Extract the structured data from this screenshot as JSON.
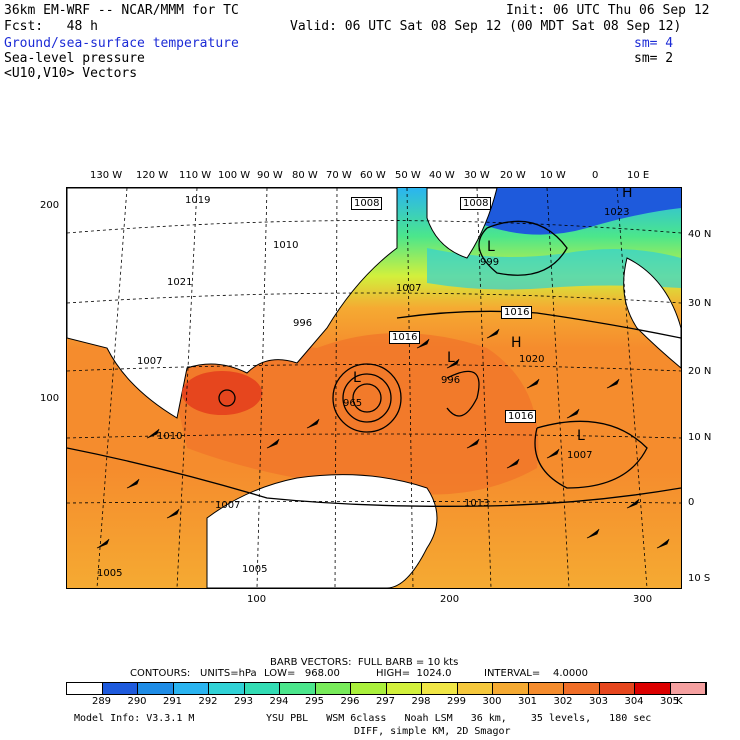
{
  "header": {
    "model_line": "36km EM-WRF -- NCAR/MMM for TC",
    "init_line": "Init: 06 UTC Thu 06 Sep 12",
    "fcst_line": "Fcst:   48 h",
    "valid_line": "Valid: 06 UTC Sat 08 Sep 12 (00 MDT Sat 08 Sep 12)",
    "field1": "Ground/sea-surface temperature",
    "field1_sm": "sm= 4",
    "field2": "Sea-level pressure",
    "field2_sm": "sm= 2",
    "field3": "<U10,V10> Vectors"
  },
  "map": {
    "top_lon_labels": [
      "130 W",
      "120 W",
      "110 W",
      "100 W",
      "90 W",
      "80 W",
      "70 W",
      "60 W",
      "50 W",
      "40 W",
      "30 W",
      "20 W",
      "10 W",
      "0",
      "10 E"
    ],
    "right_lat_labels": [
      "40 N",
      "30 N",
      "20 N",
      "10 N",
      "0",
      "10 S"
    ],
    "left_grid_labels": [
      "200",
      "100"
    ],
    "bottom_grid_labels": [
      "100",
      "200",
      "300"
    ],
    "pressure_labels": [
      "1019",
      "1008",
      "1008",
      "1023",
      "1010",
      "1021",
      "999",
      "1007",
      "996",
      "1016",
      "1016",
      "1007",
      "1020",
      "996",
      "965",
      "1016",
      "1007",
      "1013",
      "1007",
      "1005",
      "1010",
      "1005"
    ],
    "centers": [
      {
        "type": "H",
        "label": "1023"
      },
      {
        "type": "L",
        "label": "999"
      },
      {
        "type": "L",
        "label": "996"
      },
      {
        "type": "L",
        "label": "965"
      },
      {
        "type": "L",
        "label": "1007"
      },
      {
        "type": "H",
        "label": "1020"
      }
    ]
  },
  "footer": {
    "barb_line": "BARB VECTORS:  FULL BARB = 10 kts",
    "contours_label": "CONTOURS:",
    "units": "UNITS=hPa",
    "low": "LOW=   968.00",
    "high": "HIGH=  1024.0",
    "interval": "INTERVAL=    4.0000",
    "colorbar_values": [
      "289",
      "290",
      "291",
      "292",
      "293",
      "294",
      "295",
      "296",
      "297",
      "298",
      "299",
      "300",
      "301",
      "302",
      "303",
      "304",
      "305"
    ],
    "colorbar_unit": "K",
    "colorbar_colors": [
      "#ffffff",
      "#1e5adc",
      "#1e8ce6",
      "#2ab4f0",
      "#30d2d6",
      "#32dcb4",
      "#4be68c",
      "#78eb5a",
      "#aaf03c",
      "#d2f03c",
      "#f0e646",
      "#f5c83c",
      "#f5aa32",
      "#f58c2d",
      "#f06e28",
      "#e6461e",
      "#dc0000",
      "#f5a0a0"
    ],
    "model_info": "Model Info: V3.3.1 M",
    "physics": "YSU PBL   WSM 6class   Noah LSM   36 km,    35 levels,   180 sec",
    "diff": "DIFF, simple KM, 2D Smagor"
  }
}
